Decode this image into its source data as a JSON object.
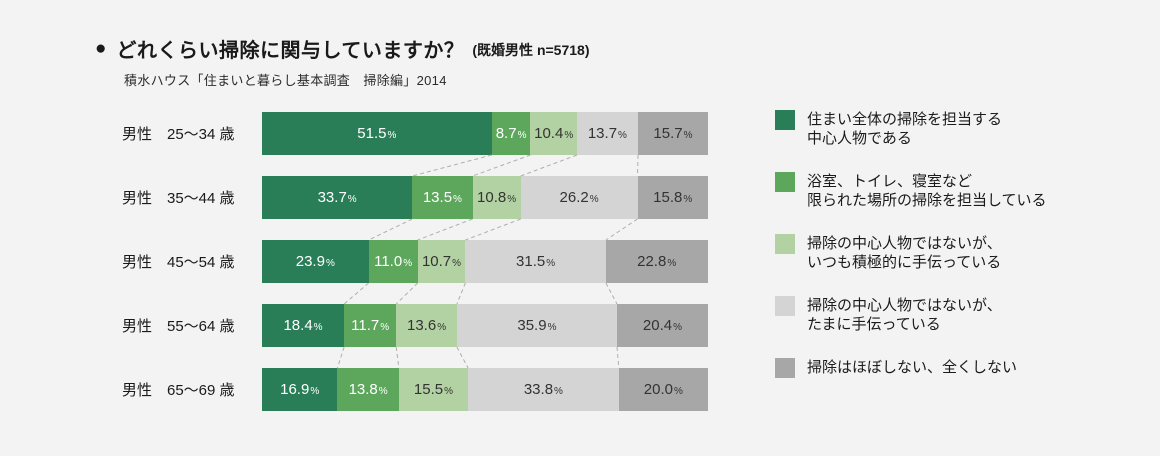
{
  "title": {
    "bullet": "●",
    "text": "どれくらい掃除に関与していますか？",
    "note": "(既婚男性 n=5718)",
    "source": "積水ハウス「住まいと暮らし基本調査　掃除編」2014"
  },
  "legend": {
    "position": "right",
    "items": [
      {
        "lines": [
          "住まい全体の掃除を担当する",
          "中心人物である"
        ],
        "color": "#2a7e57"
      },
      {
        "lines": [
          "浴室、トイレ、寝室など",
          "限られた場所の掃除を担当している"
        ],
        "color": "#5ca75c"
      },
      {
        "lines": [
          "掃除の中心人物ではないが、",
          "いつも積極的に手伝っている"
        ],
        "color": "#b3d2a3"
      },
      {
        "lines": [
          "掃除の中心人物ではないが、",
          "たまに手伝っている"
        ],
        "color": "#d3d4d3"
      },
      {
        "lines": [
          "掃除はほぼしない、全くしない"
        ],
        "color": "#a7a7a7"
      }
    ]
  },
  "chart_data": {
    "type": "bar",
    "stacked": true,
    "orientation": "horizontal",
    "unit": "%",
    "xlim": [
      0,
      100
    ],
    "grid": false,
    "legend_position": "right",
    "connector_lines": true,
    "connector_color": "#aeaeae",
    "background": "#f2f3f2",
    "categories": [
      "男性　25〜34 歳",
      "男性　35〜44 歳",
      "男性　45〜54 歳",
      "男性　55〜64 歳",
      "男性　65〜69 歳"
    ],
    "series": [
      {
        "name": "住まい全体の掃除を担当する中心人物である",
        "color": "#2a7e57",
        "text_color": "#ffffff",
        "values": [
          51.5,
          33.7,
          23.9,
          18.4,
          16.9
        ]
      },
      {
        "name": "浴室、トイレ、寝室など限られた場所の掃除を担当している",
        "color": "#5ca75c",
        "text_color": "#ffffff",
        "values": [
          8.7,
          13.5,
          11.0,
          11.7,
          13.8
        ]
      },
      {
        "name": "掃除の中心人物ではないが、いつも積極的に手伝っている",
        "color": "#b3d2a3",
        "text_color": "#333333",
        "values": [
          10.4,
          10.8,
          10.7,
          13.6,
          15.5
        ]
      },
      {
        "name": "掃除の中心人物ではないが、たまに手伝っている",
        "color": "#d3d4d3",
        "text_color": "#333333",
        "values": [
          13.7,
          26.2,
          31.5,
          35.9,
          33.8
        ]
      },
      {
        "name": "掃除はほぼしない、全くしない",
        "color": "#a7a7a7",
        "text_color": "#333333",
        "values": [
          15.7,
          15.8,
          22.8,
          20.4,
          20.0
        ]
      }
    ]
  }
}
